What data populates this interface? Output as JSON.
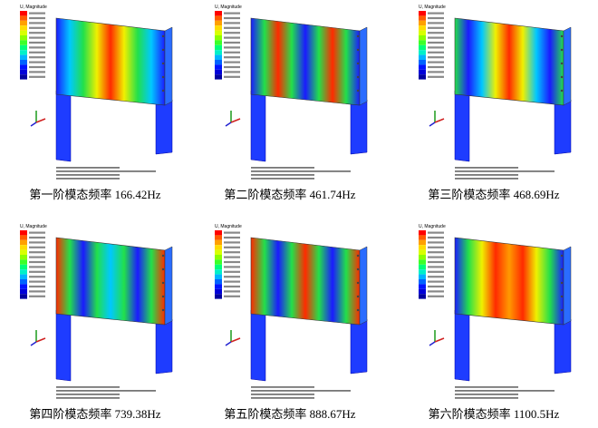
{
  "panels": [
    {
      "legend_title": "U, Magnitude",
      "caption": "第一阶模态频率 166.42Hz"
    },
    {
      "legend_title": "U, Magnitude",
      "caption": "第二阶模态频率 461.74Hz"
    },
    {
      "legend_title": "U, Magnitude",
      "caption": "第三阶模态频率 468.69Hz"
    },
    {
      "legend_title": "U, Magnitude",
      "caption": "第四阶模态频率 739.38Hz"
    },
    {
      "legend_title": "U, Magnitude",
      "caption": "第五阶模态频率 888.67Hz"
    },
    {
      "legend_title": "U, Magnitude",
      "caption": "第六阶模态频率 1100.5Hz"
    }
  ]
}
